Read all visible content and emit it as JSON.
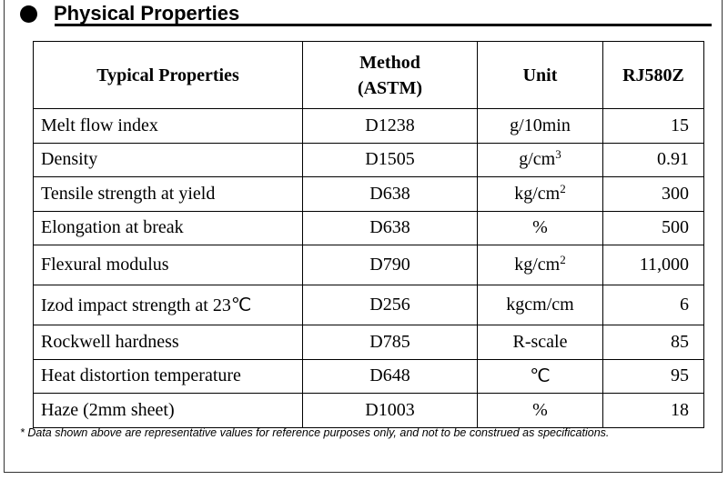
{
  "section": {
    "title": "Physical Properties"
  },
  "table": {
    "headers": {
      "property": "Typical Properties",
      "method_line1": "Method",
      "method_line2": "(ASTM)",
      "unit": "Unit",
      "grade": "RJ580Z"
    },
    "rows": [
      {
        "property": "Melt flow index",
        "method": "D1238",
        "unit": "g/10min",
        "unit_sup": "",
        "value": "15"
      },
      {
        "property": "Density",
        "method": "D1505",
        "unit": "g/cm",
        "unit_sup": "3",
        "value": "0.91"
      },
      {
        "property": "Tensile strength at yield",
        "method": "D638",
        "unit": "kg/cm",
        "unit_sup": "2",
        "value": "300"
      },
      {
        "property": "Elongation at break",
        "method": "D638",
        "unit": "%",
        "unit_sup": "",
        "value": "500"
      },
      {
        "property": "Flexural modulus",
        "method": "D790",
        "unit": "kg/cm",
        "unit_sup": "2",
        "value": "11,000"
      },
      {
        "property": "Izod impact strength at 23℃",
        "method": "D256",
        "unit": "kgcm/cm",
        "unit_sup": "",
        "value": "6"
      },
      {
        "property": "Rockwell hardness",
        "method": "D785",
        "unit": "R-scale",
        "unit_sup": "",
        "value": "85"
      },
      {
        "property": "Heat distortion temperature",
        "method": "D648",
        "unit": "℃",
        "unit_sup": "",
        "value": "95"
      },
      {
        "property": "Haze (2mm sheet)",
        "method": "D1003",
        "unit": "%",
        "unit_sup": "",
        "value": "18"
      }
    ]
  },
  "note": "* Data shown above are representative values for reference purposes only, and not to be construed as specifications."
}
